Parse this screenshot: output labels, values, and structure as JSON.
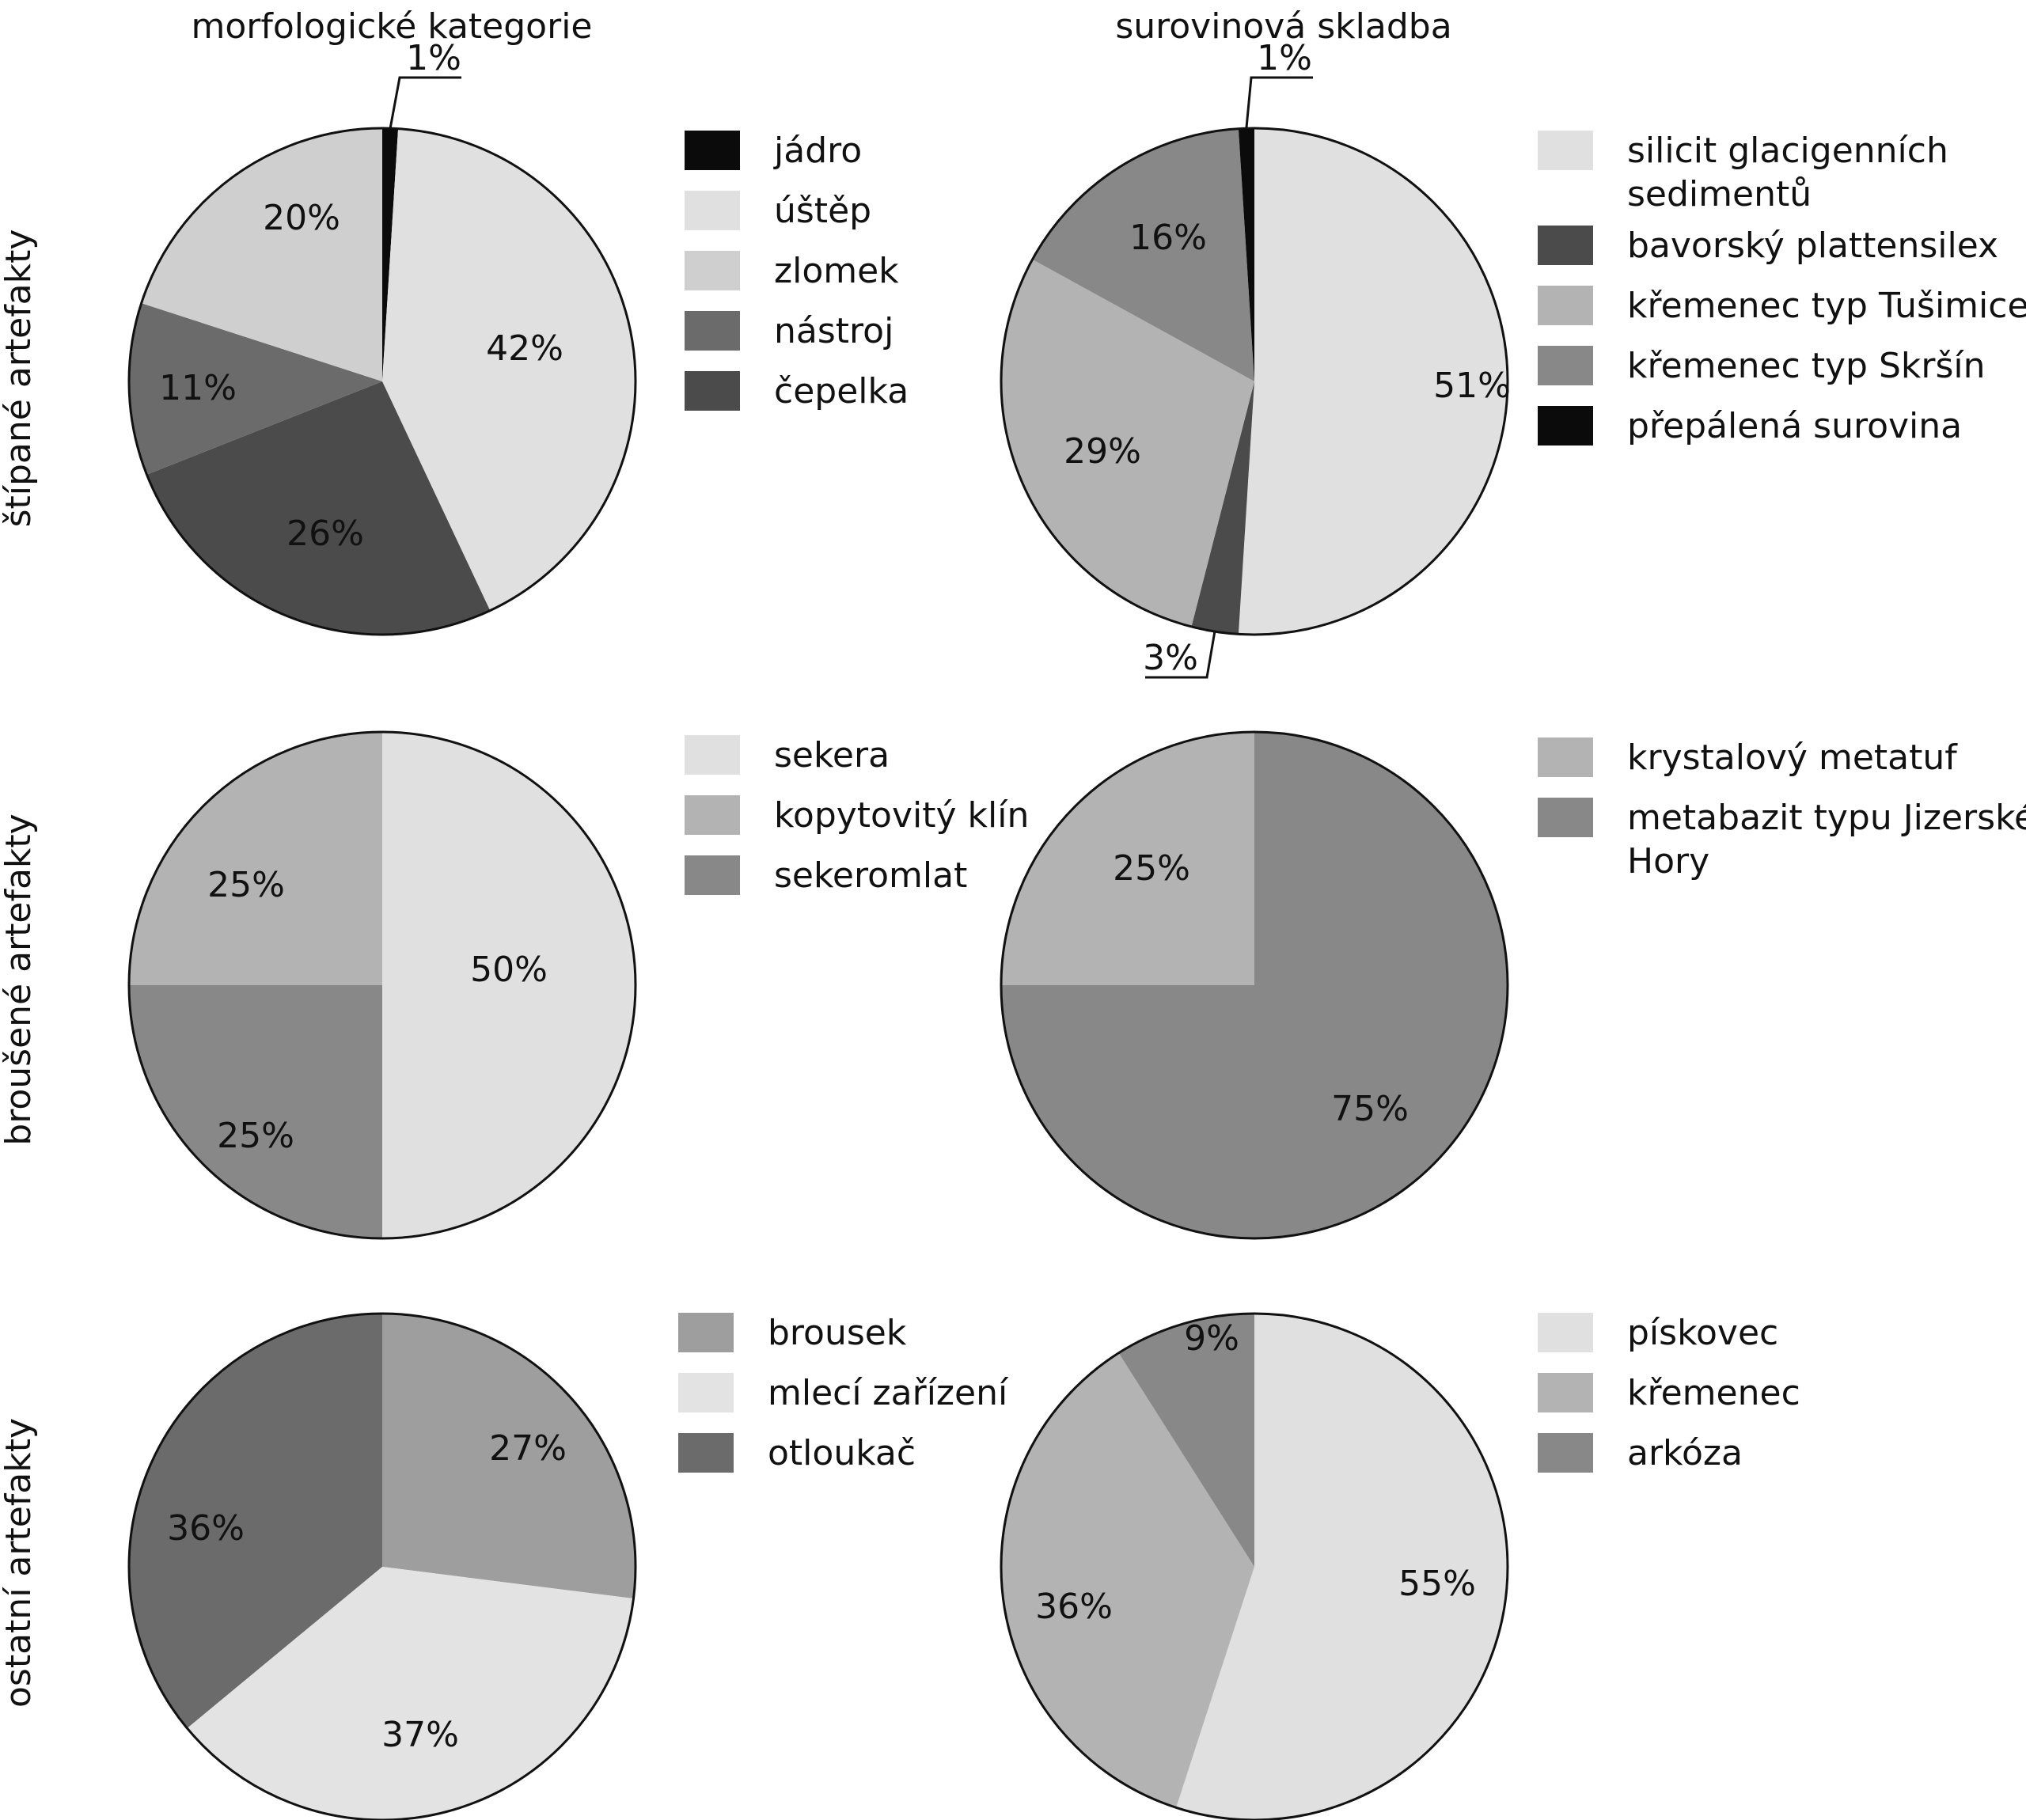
{
  "col_titles": [
    "morfologické kategorie",
    "surovinová skladba"
  ],
  "row_labels": [
    "štípané artefakty",
    "broušené artefakty",
    "ostatní artefakty"
  ],
  "chart_data": [
    {
      "type": "pie",
      "row": 0,
      "col": 0,
      "slices": [
        {
          "label": "jádro",
          "value": 1,
          "text": "1%",
          "color": "#0b0b0b"
        },
        {
          "label": "úštěp",
          "value": 42,
          "text": "42%",
          "color": "#e0e0e0"
        },
        {
          "label": "čepelka",
          "value": 26,
          "text": "26%",
          "color": "#4b4b4b"
        },
        {
          "label": "nástroj",
          "value": 11,
          "text": "11%",
          "color": "#6b6b6b"
        },
        {
          "label": "zlomek",
          "value": 20,
          "text": "20%",
          "color": "#cfcfcf"
        }
      ],
      "legend": [
        {
          "label": "jádro",
          "color": "#0b0b0b"
        },
        {
          "label": "úštěp",
          "color": "#e0e0e0"
        },
        {
          "label": "zlomek",
          "color": "#cfcfcf"
        },
        {
          "label": "nástroj",
          "color": "#6b6b6b"
        },
        {
          "label": "čepelka",
          "color": "#4b4b4b"
        }
      ]
    },
    {
      "type": "pie",
      "row": 0,
      "col": 1,
      "slices": [
        {
          "label": "silicit glacigenních sedimentů",
          "value": 51,
          "text": "51%",
          "color": "#e0e0e0"
        },
        {
          "label": "bavorský plattensilex",
          "value": 3,
          "text": "3%",
          "color": "#4b4b4b"
        },
        {
          "label": "křemenec typ Tušimice",
          "value": 29,
          "text": "29%",
          "color": "#b3b3b3"
        },
        {
          "label": "křemenec typ Skršín",
          "value": 16,
          "text": "16%",
          "color": "#888888"
        },
        {
          "label": "přepálená surovina",
          "value": 1,
          "text": "1%",
          "color": "#0b0b0b"
        }
      ],
      "legend": [
        {
          "label": "silicit glacigenních",
          "label2": "sedimentů",
          "color": "#e0e0e0"
        },
        {
          "label": "bavorský plattensilex",
          "color": "#4b4b4b"
        },
        {
          "label": "křemenec typ Tušimice",
          "color": "#b3b3b3"
        },
        {
          "label": "křemenec typ Skršín",
          "color": "#888888"
        },
        {
          "label": "přepálená surovina",
          "color": "#0b0b0b"
        }
      ]
    },
    {
      "type": "pie",
      "row": 1,
      "col": 0,
      "slices": [
        {
          "label": "sekera",
          "value": 50,
          "text": "50%",
          "color": "#e0e0e0"
        },
        {
          "label": "sekeromlat",
          "value": 25,
          "text": "25%",
          "color": "#888888"
        },
        {
          "label": "kopytovitý klín",
          "value": 25,
          "text": "25%",
          "color": "#b3b3b3"
        }
      ],
      "legend": [
        {
          "label": "sekera",
          "color": "#e0e0e0"
        },
        {
          "label": "kopytovitý klín",
          "color": "#b3b3b3"
        },
        {
          "label": "sekeromlat",
          "color": "#888888"
        }
      ]
    },
    {
      "type": "pie",
      "row": 1,
      "col": 1,
      "slices": [
        {
          "label": "metabazit typu Jizerské Hory",
          "value": 75,
          "text": "75%",
          "color": "#888888"
        },
        {
          "label": "krystalový metatuf",
          "value": 25,
          "text": "25%",
          "color": "#b3b3b3"
        }
      ],
      "legend": [
        {
          "label": "krystalový metatuf",
          "color": "#b3b3b3"
        },
        {
          "label": "metabazit typu Jizerské",
          "label2": "Hory",
          "color": "#888888"
        }
      ]
    },
    {
      "type": "pie",
      "row": 2,
      "col": 0,
      "slices": [
        {
          "label": "brousek",
          "value": 27,
          "text": "27%",
          "color": "#9e9e9e"
        },
        {
          "label": "mlecí zařízení",
          "value": 37,
          "text": "37%",
          "color": "#e3e3e3"
        },
        {
          "label": "otloukač",
          "value": 36,
          "text": "36%",
          "color": "#6b6b6b"
        }
      ],
      "legend": [
        {
          "label": "brousek",
          "color": "#9e9e9e"
        },
        {
          "label": "mlecí zařízení",
          "color": "#e3e3e3"
        },
        {
          "label": "otloukač",
          "color": "#6b6b6b"
        }
      ]
    },
    {
      "type": "pie",
      "row": 2,
      "col": 1,
      "slices": [
        {
          "label": "pískovec",
          "value": 55,
          "text": "55%",
          "color": "#e0e0e0"
        },
        {
          "label": "křemenec",
          "value": 36,
          "text": "36%",
          "color": "#b3b3b3"
        },
        {
          "label": "arkóza",
          "value": 9,
          "text": "9%",
          "color": "#888888"
        }
      ],
      "legend": [
        {
          "label": "pískovec",
          "color": "#e0e0e0"
        },
        {
          "label": "křemenec",
          "color": "#b3b3b3"
        },
        {
          "label": "arkóza",
          "color": "#888888"
        }
      ]
    }
  ]
}
